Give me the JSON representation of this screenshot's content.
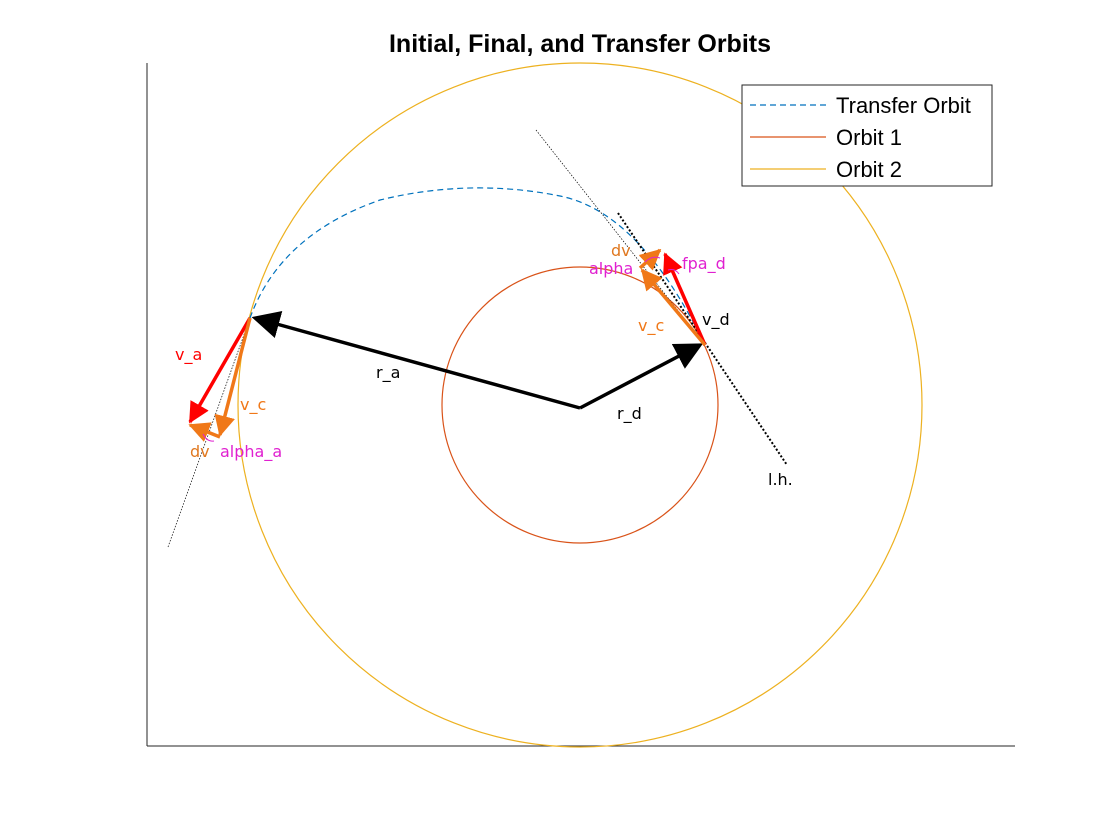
{
  "title": "Initial, Final, and Transfer Orbits",
  "legend": {
    "items": [
      {
        "label": "Transfer Orbit",
        "color": "#0072BD",
        "style": "dashed"
      },
      {
        "label": "Orbit 1",
        "color": "#D95319",
        "style": "solid"
      },
      {
        "label": "Orbit 2",
        "color": "#EDB120",
        "style": "solid"
      }
    ]
  },
  "annotations": {
    "r_a": "r_a",
    "r_d": "r_d",
    "v_a": "v_a",
    "v_c_a": "v_c",
    "dv_a": "dv",
    "alpha_a": "alpha_a",
    "v_d": "v_d",
    "v_c_d": "v_c",
    "dv_d": "dv",
    "alpha": "alpha",
    "fpa_d": "fpa_d",
    "lh": "l.h."
  },
  "colors": {
    "position_vector": "#000000",
    "velocity": "#FF0000",
    "circular_velocity": "#F07818",
    "angle_label": "#E020D0",
    "dv_label": "#E07820"
  }
}
